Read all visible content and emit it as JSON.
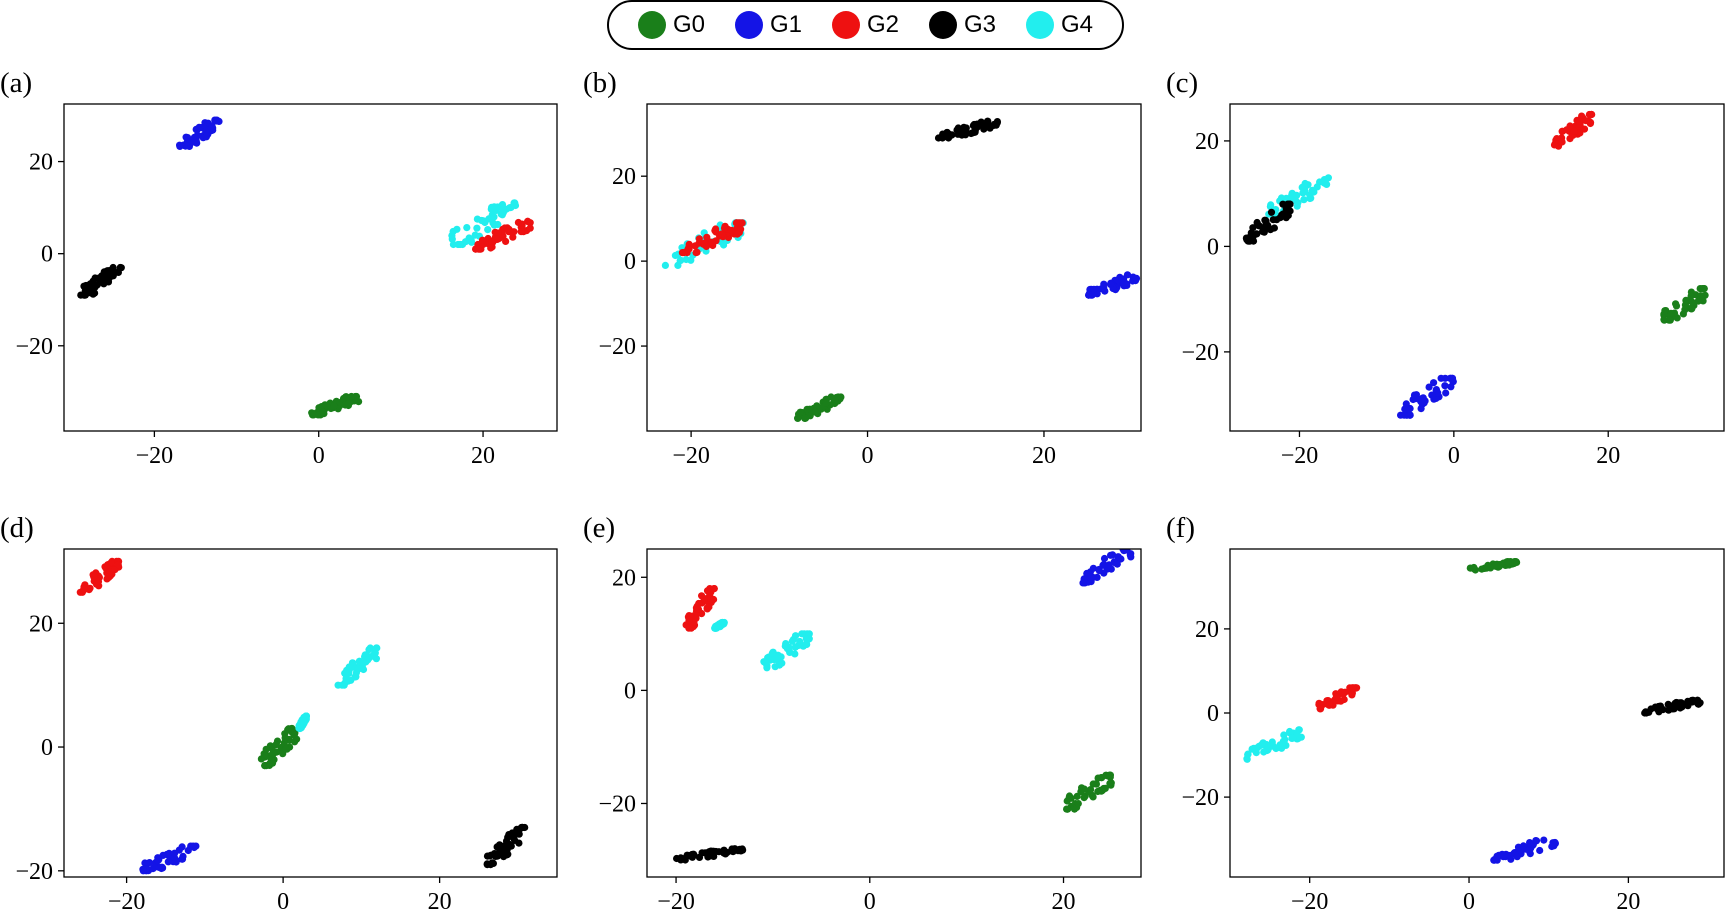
{
  "legend": {
    "entries": [
      {
        "label": "G0",
        "color": "#1a7f1a"
      },
      {
        "label": "G1",
        "color": "#1414e6"
      },
      {
        "label": "G2",
        "color": "#ee1111"
      },
      {
        "label": "G3",
        "color": "#000000"
      },
      {
        "label": "G4",
        "color": "#22eeee"
      }
    ]
  },
  "chart_data": [
    {
      "type": "scatter",
      "panel_label": "(a)",
      "xlim": [
        -31,
        29
      ],
      "ylim": [
        -38.5,
        32.5
      ],
      "xticks": [
        -20,
        0,
        20
      ],
      "yticks": [
        -20,
        0,
        20
      ],
      "clusters": [
        {
          "series": "G1",
          "x": [
            -17,
            -12
          ],
          "y": [
            23,
            29
          ]
        },
        {
          "series": "G3",
          "x": [
            -29,
            -24
          ],
          "y": [
            -9,
            -3
          ]
        },
        {
          "series": "G0",
          "x": [
            -1,
            5
          ],
          "y": [
            -35,
            -31
          ]
        },
        {
          "series": "G4",
          "x": [
            16,
            24
          ],
          "y": [
            2,
            11
          ]
        },
        {
          "series": "G2",
          "x": [
            19,
            26
          ],
          "y": [
            1,
            7
          ]
        }
      ]
    },
    {
      "type": "scatter",
      "panel_label": "(b)",
      "xlim": [
        -25,
        31
      ],
      "ylim": [
        -40,
        37
      ],
      "xticks": [
        -20,
        0,
        20
      ],
      "yticks": [
        -20,
        0,
        20
      ],
      "clusters": [
        {
          "series": "G3",
          "x": [
            8,
            15
          ],
          "y": [
            29,
            33
          ]
        },
        {
          "series": "G4",
          "x": [
            -23,
            -14
          ],
          "y": [
            -1,
            9
          ]
        },
        {
          "series": "G2",
          "x": [
            -21,
            -14
          ],
          "y": [
            2,
            9
          ]
        },
        {
          "series": "G1",
          "x": [
            25,
            31
          ],
          "y": [
            -8,
            -3
          ]
        },
        {
          "series": "G0",
          "x": [
            -8,
            -3
          ],
          "y": [
            -37,
            -32
          ]
        }
      ]
    },
    {
      "type": "scatter",
      "panel_label": "(c)",
      "xlim": [
        -29,
        35
      ],
      "ylim": [
        -35,
        27
      ],
      "xticks": [
        -20,
        0,
        20
      ],
      "yticks": [
        -20,
        0,
        20
      ],
      "clusters": [
        {
          "series": "G2",
          "x": [
            13,
            18
          ],
          "y": [
            19,
            25
          ]
        },
        {
          "series": "G4",
          "x": [
            -24,
            -16
          ],
          "y": [
            6,
            13
          ]
        },
        {
          "series": "G3",
          "x": [
            -27,
            -21
          ],
          "y": [
            1,
            8
          ]
        },
        {
          "series": "G0",
          "x": [
            27,
            33
          ],
          "y": [
            -14,
            -8
          ]
        },
        {
          "series": "G1",
          "x": [
            -7,
            0
          ],
          "y": [
            -32,
            -25
          ]
        }
      ]
    },
    {
      "type": "scatter",
      "panel_label": "(d)",
      "xlim": [
        -28,
        35
      ],
      "ylim": [
        -21,
        32
      ],
      "xticks": [
        -20,
        0,
        20
      ],
      "yticks": [
        -20,
        0,
        20
      ],
      "clusters": [
        {
          "series": "G2",
          "x": [
            -26,
            -21
          ],
          "y": [
            25,
            30
          ]
        },
        {
          "series": "G4",
          "x": [
            7,
            12
          ],
          "y": [
            10,
            16
          ]
        },
        {
          "series": "G0",
          "x": [
            -3,
            2
          ],
          "y": [
            -3,
            3
          ]
        },
        {
          "series": "G4",
          "x": [
            2,
            3
          ],
          "y": [
            3,
            5
          ]
        },
        {
          "series": "G1",
          "x": [
            -18,
            -11
          ],
          "y": [
            -20,
            -16
          ]
        },
        {
          "series": "G3",
          "x": [
            26,
            31
          ],
          "y": [
            -19,
            -13
          ]
        }
      ]
    },
    {
      "type": "scatter",
      "panel_label": "(e)",
      "xlim": [
        -23,
        28
      ],
      "ylim": [
        -33,
        25
      ],
      "xticks": [
        -20,
        0,
        20
      ],
      "yticks": [
        -20,
        0,
        20
      ],
      "clusters": [
        {
          "series": "G1",
          "x": [
            22,
            27
          ],
          "y": [
            19,
            25
          ]
        },
        {
          "series": "G2",
          "x": [
            -19,
            -16
          ],
          "y": [
            11,
            18
          ]
        },
        {
          "series": "G4",
          "x": [
            -16,
            -15
          ],
          "y": [
            11,
            12
          ]
        },
        {
          "series": "G4",
          "x": [
            -11,
            -6
          ],
          "y": [
            4,
            10
          ]
        },
        {
          "series": "G0",
          "x": [
            20,
            25
          ],
          "y": [
            -21,
            -15
          ]
        },
        {
          "series": "G3",
          "x": [
            -20,
            -13
          ],
          "y": [
            -30,
            -28
          ]
        }
      ]
    },
    {
      "type": "scatter",
      "panel_label": "(f)",
      "xlim": [
        -30,
        32
      ],
      "ylim": [
        -39,
        39
      ],
      "xticks": [
        -20,
        0,
        20
      ],
      "yticks": [
        -20,
        0,
        20
      ],
      "clusters": [
        {
          "series": "G0",
          "x": [
            0,
            6
          ],
          "y": [
            34,
            36
          ]
        },
        {
          "series": "G2",
          "x": [
            -19,
            -14
          ],
          "y": [
            1,
            6
          ]
        },
        {
          "series": "G4",
          "x": [
            -28,
            -21
          ],
          "y": [
            -11,
            -4
          ]
        },
        {
          "series": "G3",
          "x": [
            22,
            29
          ],
          "y": [
            0,
            3
          ]
        },
        {
          "series": "G1",
          "x": [
            3,
            11
          ],
          "y": [
            -35,
            -30
          ]
        }
      ]
    }
  ]
}
